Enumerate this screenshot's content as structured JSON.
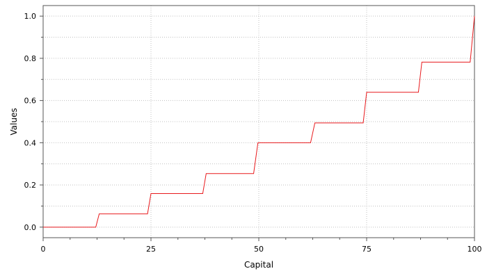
{
  "chart_data": {
    "type": "line",
    "title": "",
    "xlabel": "Capital",
    "ylabel": "Values",
    "xlim": [
      0,
      100
    ],
    "ylim": [
      -0.05,
      1.05
    ],
    "x_ticks": [
      0,
      25,
      50,
      75,
      100
    ],
    "x_tick_labels": [
      "0",
      "25",
      "50",
      "75",
      "100"
    ],
    "y_ticks": [
      0.0,
      0.2,
      0.4,
      0.6,
      0.8,
      1.0
    ],
    "y_tick_labels": [
      "0.0",
      "0.2",
      "0.4",
      "0.6",
      "0.8",
      "1.0"
    ],
    "grid": true,
    "series": [
      {
        "color": "#e8191c",
        "x": [
          0,
          12.2,
          13.0,
          24.2,
          25.0,
          37.0,
          37.8,
          48.8,
          49.8,
          62.0,
          63.0,
          74.2,
          75.0,
          87.0,
          87.8,
          99.0,
          100
        ],
        "y": [
          0.0,
          0.0,
          0.063,
          0.063,
          0.159,
          0.159,
          0.254,
          0.254,
          0.4,
          0.4,
          0.494,
          0.494,
          0.639,
          0.639,
          0.782,
          0.782,
          1.0
        ]
      }
    ]
  }
}
